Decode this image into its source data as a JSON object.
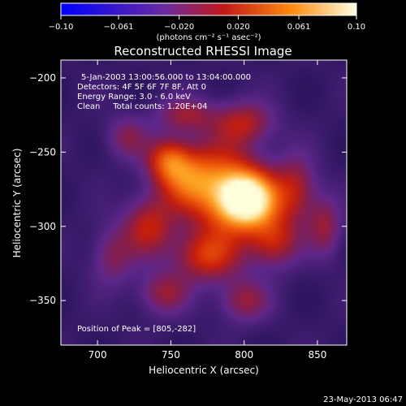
{
  "chart_data": {
    "type": "heatmap",
    "title": "Reconstructed RHESSI Image",
    "xlabel": "Heliocentric X (arcsec)",
    "ylabel": "Heliocentric Y (arcsec)",
    "xlim": [
      675,
      870
    ],
    "ylim": [
      -380,
      -188
    ],
    "x_ticks": [
      700,
      750,
      800,
      850
    ],
    "y_ticks": [
      -200,
      -250,
      -300,
      -350
    ],
    "x_tick_labels": [
      "700",
      "750",
      "800",
      "850"
    ],
    "y_tick_labels": [
      "−200",
      "−250",
      "−300",
      "−350"
    ],
    "colorbar": {
      "range": [
        -0.1,
        0.1
      ],
      "ticks": [
        -0.1,
        -0.061,
        -0.02,
        0.02,
        0.061,
        0.1
      ],
      "tick_labels": [
        "−0.10",
        "−0.061",
        "−0.020",
        "0.020",
        "0.061",
        "0.10"
      ],
      "unit_label": "(photons cm⁻² s⁻¹ asec⁻²)",
      "colors": [
        "#0000ff",
        "#5a2a8a",
        "#d02010",
        "#ffa020",
        "#ffffe0"
      ]
    },
    "annotations": {
      "time": "5-Jan-2003 13:00:56.000 to 13:04:00.000",
      "detectors": "Detectors: 4F 5F 6F 7F 8F, Att 0",
      "energy": "Energy Range: 3.0 - 6.0 keV",
      "clean": "Clean     Total counts: 1.20E+04",
      "peak": "Position of Peak = [805,-282]"
    },
    "peak_position": [
      805,
      -282
    ],
    "blobs": [
      {
        "x": 803,
        "y": -282,
        "sx": 14,
        "sy": 13,
        "a": 1.0
      },
      {
        "x": 785,
        "y": -275,
        "sx": 18,
        "sy": 22,
        "a": 0.55
      },
      {
        "x": 760,
        "y": -268,
        "sx": 14,
        "sy": 14,
        "a": 0.45
      },
      {
        "x": 748,
        "y": -255,
        "sx": 10,
        "sy": 10,
        "a": 0.45
      },
      {
        "x": 735,
        "y": -300,
        "sx": 12,
        "sy": 14,
        "a": 0.4
      },
      {
        "x": 775,
        "y": -320,
        "sx": 16,
        "sy": 12,
        "a": 0.45
      },
      {
        "x": 820,
        "y": -310,
        "sx": 12,
        "sy": 12,
        "a": 0.4
      },
      {
        "x": 835,
        "y": -275,
        "sx": 10,
        "sy": 16,
        "a": 0.35
      },
      {
        "x": 800,
        "y": -230,
        "sx": 14,
        "sy": 10,
        "a": 0.35
      },
      {
        "x": 760,
        "y": -225,
        "sx": 14,
        "sy": 8,
        "a": 0.3
      },
      {
        "x": 745,
        "y": -345,
        "sx": 12,
        "sy": 10,
        "a": 0.3
      },
      {
        "x": 800,
        "y": -350,
        "sx": 12,
        "sy": 10,
        "a": 0.3
      },
      {
        "x": 855,
        "y": -300,
        "sx": 8,
        "sy": 14,
        "a": 0.3
      },
      {
        "x": 720,
        "y": -240,
        "sx": 10,
        "sy": 10,
        "a": 0.25
      },
      {
        "x": 710,
        "y": -320,
        "sx": 10,
        "sy": 14,
        "a": 0.25
      }
    ],
    "footer_timestamp": "23-May-2013 06:47"
  }
}
